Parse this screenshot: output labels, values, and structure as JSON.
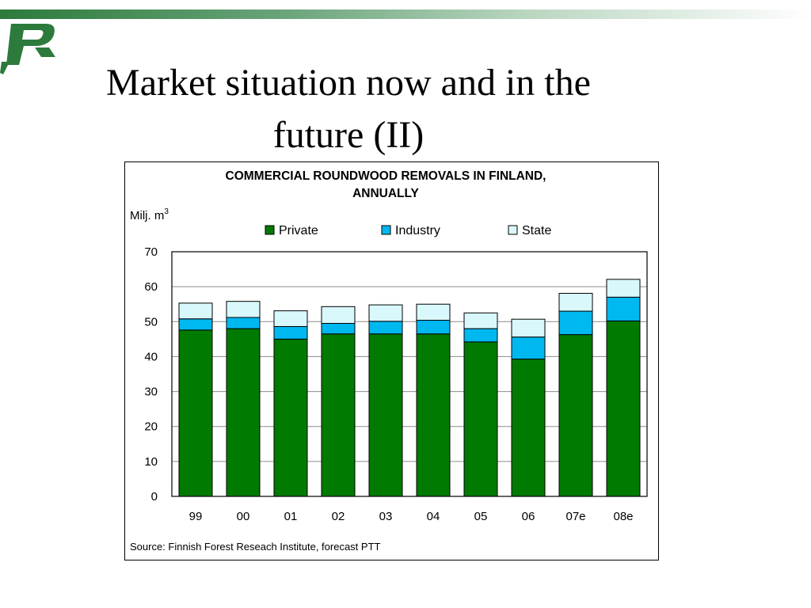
{
  "slide": {
    "title_line1": "Market situation now and in the",
    "title_line2": "future (II)"
  },
  "colors": {
    "top_bar": "#2c7a3c",
    "logo": "#2c7a3c",
    "private": "#007a00",
    "industry": "#00b8f0",
    "state": "#d8f8fc"
  },
  "chart_data": {
    "type": "bar",
    "stacked": true,
    "title_line1": "COMMERCIAL ROUNDWOOD REMOVALS IN FINLAND,",
    "title_line2": "ANNUALLY",
    "unit_label": "Milj. m",
    "unit_superscript": "3",
    "source": "Source: Finnish Forest Reseach Institute, forecast PTT",
    "categories": [
      "99",
      "00",
      "01",
      "02",
      "03",
      "04",
      "05",
      "06",
      "07e",
      "08e"
    ],
    "ylim": [
      0,
      70
    ],
    "yticks": [
      0,
      10,
      20,
      30,
      40,
      50,
      60,
      70
    ],
    "grid": true,
    "legend_position": "top",
    "series": [
      {
        "name": "Private",
        "color": "#007a00",
        "values": [
          47.6,
          48.0,
          45.0,
          46.5,
          46.5,
          46.5,
          44.2,
          39.3,
          46.3,
          50.2
        ]
      },
      {
        "name": "Industry",
        "color": "#00b8f0",
        "values": [
          3.2,
          3.2,
          3.6,
          3.0,
          3.6,
          3.9,
          3.8,
          6.3,
          6.7,
          6.8
        ]
      },
      {
        "name": "State",
        "color": "#d8f8fc",
        "values": [
          4.5,
          4.6,
          4.5,
          4.8,
          4.7,
          4.6,
          4.5,
          5.1,
          5.1,
          5.1
        ]
      }
    ]
  }
}
